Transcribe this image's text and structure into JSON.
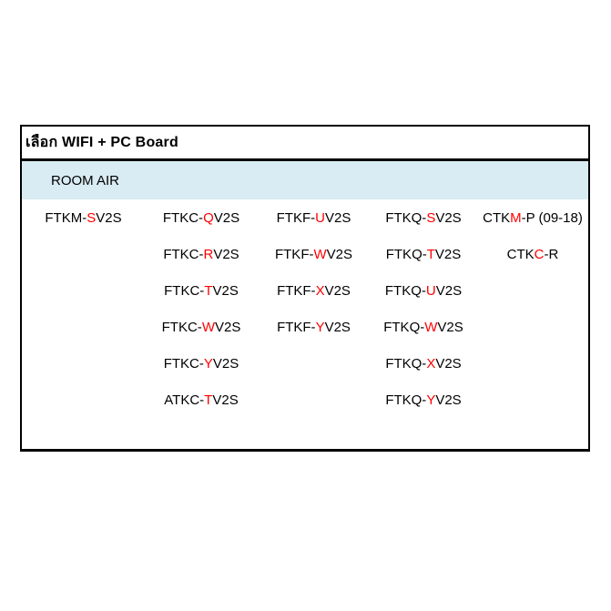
{
  "table": {
    "title": "เลือก WIFI + PC Board",
    "section_header": "ROOM AIR",
    "colors": {
      "page_bg": "#ffffff",
      "border": "#000000",
      "text": "#000000",
      "highlight_red": "#ff0000",
      "section_bg": "#d9ebf3"
    },
    "columns": [
      {
        "models": [
          {
            "pre": "FTKM-",
            "red": "S",
            "post": "V2S"
          }
        ]
      },
      {
        "models": [
          {
            "pre": "FTKC-",
            "red": "Q",
            "post": "V2S"
          },
          {
            "pre": "FTKC-",
            "red": "R",
            "post": "V2S"
          },
          {
            "pre": "FTKC-",
            "red": "T",
            "post": "V2S"
          },
          {
            "pre": "FTKC-",
            "red": "W",
            "post": "V2S"
          },
          {
            "pre": "FTKC-",
            "red": "Y",
            "post": "V2S"
          },
          {
            "pre": "ATKC-",
            "red": "T",
            "post": "V2S"
          }
        ]
      },
      {
        "models": [
          {
            "pre": "FTKF-",
            "red": "U",
            "post": "V2S"
          },
          {
            "pre": "FTKF-",
            "red": "W",
            "post": "V2S"
          },
          {
            "pre": "FTKF-",
            "red": "X",
            "post": "V2S"
          },
          {
            "pre": "FTKF-",
            "red": "Y",
            "post": "V2S"
          }
        ]
      },
      {
        "models": [
          {
            "pre": "FTKQ-",
            "red": "S",
            "post": "V2S"
          },
          {
            "pre": "FTKQ-",
            "red": "T",
            "post": "V2S"
          },
          {
            "pre": "FTKQ-",
            "red": "U",
            "post": "V2S"
          },
          {
            "pre": "FTKQ-",
            "red": "W",
            "post": "V2S"
          },
          {
            "pre": "FTKQ-",
            "red": "X",
            "post": "V2S"
          },
          {
            "pre": "FTKQ-",
            "red": "Y",
            "post": "V2S"
          }
        ]
      },
      {
        "models": [
          {
            "pre": "CTK",
            "red": "M",
            "post": "-P (09-18)"
          },
          {
            "pre": "CTK",
            "red": "C",
            "post": "-R"
          }
        ]
      }
    ]
  }
}
